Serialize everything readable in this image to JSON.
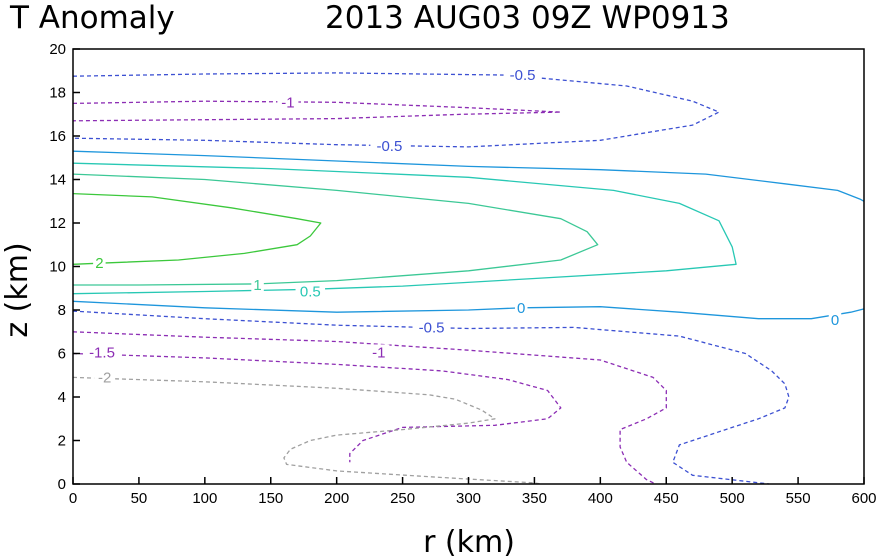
{
  "chart_data": {
    "type": "contour",
    "title_left": "T Anomaly",
    "title_right": "2013 AUG03 09Z   WP0913",
    "xlabel": "r (km)",
    "ylabel": "z (km)",
    "xlim": [
      0,
      600
    ],
    "ylim": [
      0,
      20
    ],
    "xticks": [
      0,
      50,
      100,
      150,
      200,
      250,
      300,
      350,
      400,
      450,
      500,
      550,
      600
    ],
    "yticks": [
      0,
      2,
      4,
      6,
      8,
      10,
      12,
      14,
      16,
      18,
      20
    ],
    "contours": [
      {
        "name": "neg-0.5-upper",
        "label": "-0.5",
        "color": "#3c50d2",
        "dash": true,
        "points": [
          [
            0,
            18.75
          ],
          [
            100,
            18.85
          ],
          [
            200,
            18.9
          ],
          [
            330,
            18.8
          ],
          [
            420,
            18.3
          ],
          [
            470,
            17.6
          ],
          [
            490,
            17.1
          ],
          [
            470,
            16.5
          ],
          [
            400,
            15.8
          ],
          [
            300,
            15.5
          ],
          [
            200,
            15.6
          ],
          [
            100,
            15.8
          ],
          [
            0,
            15.9
          ]
        ],
        "labels": [
          {
            "text": "-0.5",
            "x": 341,
            "y": 18.8
          },
          {
            "text": "-0.5",
            "x": 240,
            "y": 15.55
          }
        ]
      },
      {
        "name": "neg-1-upper",
        "label": "-1",
        "color": "#8c2db4",
        "dash": true,
        "points": [
          [
            0,
            17.5
          ],
          [
            100,
            17.6
          ],
          [
            200,
            17.55
          ],
          [
            300,
            17.3
          ],
          [
            370,
            17.1
          ],
          [
            295,
            17.0
          ],
          [
            200,
            16.8
          ],
          [
            100,
            16.75
          ],
          [
            0,
            16.7
          ]
        ],
        "labels": [
          {
            "text": "-1",
            "x": 163,
            "y": 17.55
          }
        ]
      },
      {
        "name": "zero-upper",
        "label": "0",
        "color": "#1e96dc",
        "dash": false,
        "points": [
          [
            0,
            15.3
          ],
          [
            100,
            15.1
          ],
          [
            200,
            14.85
          ],
          [
            300,
            14.6
          ],
          [
            400,
            14.45
          ],
          [
            480,
            14.25
          ],
          [
            540,
            13.8
          ],
          [
            580,
            13.5
          ],
          [
            597,
            13.1
          ],
          [
            600,
            13.0
          ]
        ],
        "labels": []
      },
      {
        "name": "pos-0.5",
        "label": "0.5",
        "color": "#28c8b4",
        "dash": false,
        "points": [
          [
            0,
            14.75
          ],
          [
            150,
            14.5
          ],
          [
            300,
            14.1
          ],
          [
            410,
            13.5
          ],
          [
            460,
            12.9
          ],
          [
            490,
            12.1
          ],
          [
            500,
            10.9
          ],
          [
            503,
            10.1
          ],
          [
            450,
            9.8
          ],
          [
            350,
            9.45
          ],
          [
            250,
            9.1
          ],
          [
            180,
            8.95
          ],
          [
            100,
            8.85
          ],
          [
            0,
            8.75
          ]
        ],
        "labels": [
          {
            "text": "0.5",
            "x": 180,
            "y": 8.85
          }
        ]
      },
      {
        "name": "pos-1",
        "label": "1",
        "color": "#3cc896",
        "dash": false,
        "points": [
          [
            0,
            14.25
          ],
          [
            100,
            14.0
          ],
          [
            200,
            13.5
          ],
          [
            300,
            12.9
          ],
          [
            370,
            12.2
          ],
          [
            390,
            11.6
          ],
          [
            398,
            11.0
          ],
          [
            370,
            10.3
          ],
          [
            300,
            9.8
          ],
          [
            200,
            9.35
          ],
          [
            140,
            9.2
          ],
          [
            50,
            9.15
          ],
          [
            0,
            9.15
          ]
        ],
        "labels": [
          {
            "text": "1",
            "x": 140,
            "y": 9.15
          }
        ]
      },
      {
        "name": "pos-2",
        "label": "2",
        "color": "#3cc83c",
        "dash": false,
        "points": [
          [
            0,
            13.35
          ],
          [
            60,
            13.2
          ],
          [
            120,
            12.7
          ],
          [
            170,
            12.2
          ],
          [
            188,
            12.0
          ],
          [
            180,
            11.4
          ],
          [
            170,
            11.0
          ],
          [
            130,
            10.6
          ],
          [
            80,
            10.3
          ],
          [
            20,
            10.15
          ],
          [
            0,
            10.1
          ]
        ],
        "labels": [
          {
            "text": "2",
            "x": 20,
            "y": 10.15
          }
        ]
      },
      {
        "name": "zero-lower",
        "label": "0",
        "color": "#1e96dc",
        "dash": false,
        "points": [
          [
            0,
            8.4
          ],
          [
            100,
            8.1
          ],
          [
            200,
            7.9
          ],
          [
            300,
            8.0
          ],
          [
            340,
            8.1
          ],
          [
            400,
            8.15
          ],
          [
            460,
            7.9
          ],
          [
            520,
            7.6
          ],
          [
            560,
            7.6
          ],
          [
            590,
            7.9
          ],
          [
            600,
            8.05
          ]
        ],
        "labels": [
          {
            "text": "0",
            "x": 340,
            "y": 8.1
          },
          {
            "text": "0",
            "x": 578,
            "y": 7.55
          }
        ]
      },
      {
        "name": "neg-0.5-lower",
        "label": "-0.5",
        "color": "#3c50d2",
        "dash": true,
        "points": [
          [
            0,
            7.95
          ],
          [
            100,
            7.6
          ],
          [
            200,
            7.3
          ],
          [
            300,
            7.15
          ],
          [
            380,
            7.2
          ],
          [
            460,
            6.8
          ],
          [
            510,
            6.0
          ],
          [
            530,
            5.2
          ],
          [
            540,
            4.6
          ],
          [
            543,
            4.0
          ],
          [
            540,
            3.5
          ],
          [
            520,
            3.0
          ],
          [
            495,
            2.5
          ],
          [
            460,
            1.8
          ],
          [
            455,
            1.0
          ],
          [
            470,
            0.4
          ],
          [
            528,
            0.0
          ]
        ],
        "labels": [
          {
            "text": "-0.5",
            "x": 272,
            "y": 7.2
          }
        ]
      },
      {
        "name": "neg-1-lower",
        "label": "-1",
        "color": "#8c2db4",
        "dash": true,
        "points": [
          [
            0,
            7.0
          ],
          [
            100,
            6.75
          ],
          [
            200,
            6.55
          ],
          [
            300,
            6.15
          ],
          [
            400,
            5.7
          ],
          [
            440,
            4.9
          ],
          [
            450,
            4.3
          ],
          [
            450,
            3.5
          ],
          [
            435,
            3.0
          ],
          [
            415,
            2.5
          ],
          [
            415,
            1.7
          ],
          [
            420,
            1.0
          ],
          [
            435,
            0.2
          ],
          [
            442,
            0.0
          ]
        ],
        "labels": [
          {
            "text": "-1",
            "x": 232,
            "y": 6.05
          }
        ]
      },
      {
        "name": "neg-1.5",
        "label": "-1.5",
        "color": "#8c2db4",
        "dash": true,
        "points": [
          [
            0,
            6.0
          ],
          [
            100,
            5.8
          ],
          [
            200,
            5.5
          ],
          [
            280,
            5.2
          ],
          [
            330,
            4.8
          ],
          [
            360,
            4.3
          ],
          [
            370,
            3.5
          ],
          [
            360,
            3.0
          ],
          [
            320,
            2.7
          ],
          [
            250,
            2.6
          ],
          [
            220,
            2.0
          ],
          [
            210,
            1.4
          ],
          [
            210,
            1.0
          ]
        ],
        "labels": [
          {
            "text": "-1.5",
            "x": 22,
            "y": 6.05
          }
        ]
      },
      {
        "name": "neg-2",
        "label": "-2",
        "color": "#a0a0a0",
        "dash": true,
        "points": [
          [
            0,
            4.9
          ],
          [
            100,
            4.7
          ],
          [
            200,
            4.4
          ],
          [
            270,
            4.1
          ],
          [
            290,
            3.9
          ],
          [
            310,
            3.4
          ],
          [
            320,
            3.0
          ],
          [
            300,
            2.8
          ],
          [
            250,
            2.5
          ],
          [
            200,
            2.25
          ],
          [
            180,
            2.0
          ],
          [
            165,
            1.6
          ],
          [
            160,
            1.2
          ],
          [
            162,
            0.9
          ],
          [
            200,
            0.6
          ],
          [
            280,
            0.3
          ],
          [
            350,
            0.05
          ],
          [
            355,
            0.0
          ]
        ],
        "labels": [
          {
            "text": "-2",
            "x": 24,
            "y": 4.9
          }
        ]
      }
    ]
  }
}
